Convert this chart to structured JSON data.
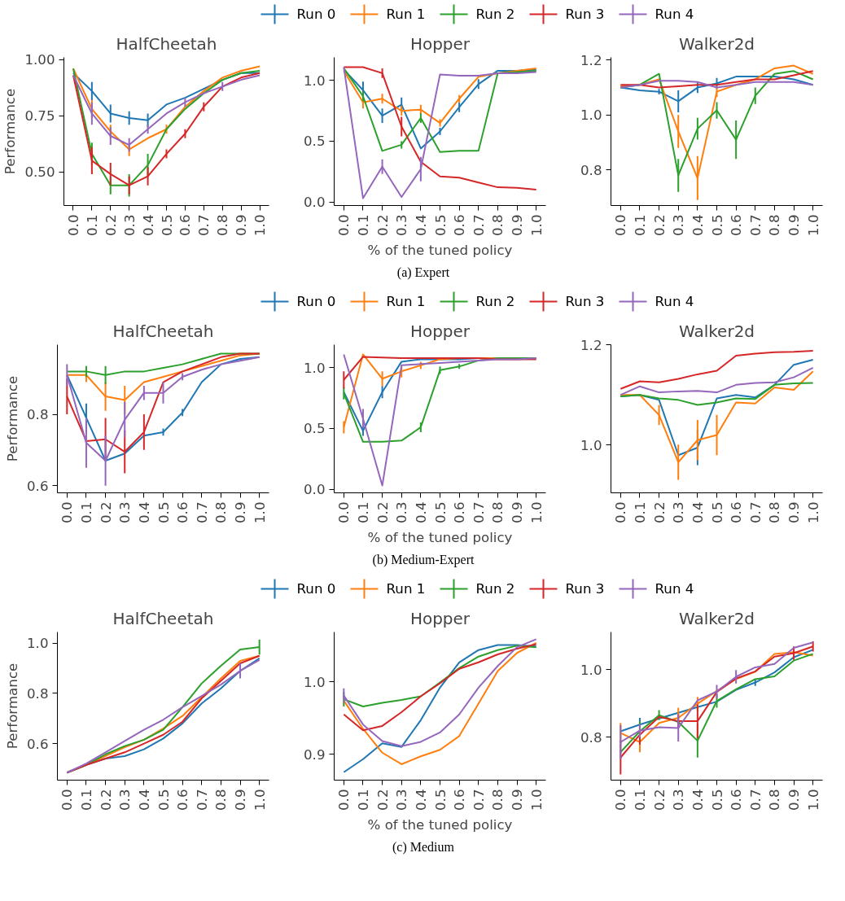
{
  "chart_data": [
    {
      "type": "line",
      "title": "HalfCheetah",
      "ylabel": "Performance",
      "categories": [
        "0.0",
        "0.1",
        "0.2",
        "0.3",
        "0.4",
        "0.5",
        "0.6",
        "0.7",
        "0.8",
        "0.9",
        "1.0"
      ],
      "ylim": [
        0.35,
        1.01
      ],
      "yticks": [
        {
          "value": 0.5,
          "label": "0.50"
        },
        {
          "value": 0.75,
          "label": "0.75"
        },
        {
          "value": 1.0,
          "label": "1.00"
        }
      ],
      "series": [
        {
          "color": "#1f77b4",
          "values": [
            0.94,
            0.86,
            0.76,
            0.74,
            0.73,
            0.8,
            0.83,
            0.87,
            0.91,
            0.94,
            0.94
          ],
          "errors": [
            null,
            0.04,
            0.04,
            0.03,
            0.03,
            null,
            null,
            null,
            null,
            null,
            null
          ]
        },
        {
          "color": "#ff7f0e",
          "values": [
            0.96,
            0.78,
            0.68,
            0.6,
            0.65,
            0.69,
            0.79,
            0.86,
            0.92,
            0.95,
            0.97
          ],
          "errors": [
            null,
            0.04,
            0.03,
            0.03,
            null,
            0.02,
            null,
            null,
            null,
            null,
            null
          ]
        },
        {
          "color": "#2ca02c",
          "values": [
            0.96,
            0.58,
            0.44,
            0.44,
            0.53,
            0.69,
            0.78,
            0.85,
            0.91,
            0.94,
            0.95
          ],
          "errors": [
            null,
            0.05,
            0.04,
            0.05,
            0.05,
            null,
            null,
            null,
            null,
            null,
            null
          ]
        },
        {
          "color": "#d62728",
          "values": [
            0.93,
            0.55,
            0.49,
            0.44,
            0.48,
            0.58,
            0.67,
            0.79,
            0.88,
            0.92,
            0.94
          ],
          "errors": [
            null,
            0.06,
            0.05,
            0.04,
            0.04,
            0.02,
            0.02,
            0.02,
            null,
            null,
            null
          ]
        },
        {
          "color": "#9467bd",
          "values": [
            0.93,
            0.76,
            0.66,
            0.62,
            0.69,
            0.76,
            0.81,
            0.85,
            0.88,
            0.91,
            0.93
          ],
          "errors": [
            null,
            0.05,
            0.04,
            0.03,
            0.02,
            null,
            0.02,
            null,
            0.02,
            null,
            null
          ]
        }
      ]
    },
    {
      "type": "line",
      "title": "Hopper",
      "xlabel": "% of the tuned policy",
      "legend": "top",
      "annotations": [
        "(a) Expert"
      ],
      "categories": [
        "0.0",
        "0.1",
        "0.2",
        "0.3",
        "0.4",
        "0.5",
        "0.6",
        "0.7",
        "0.8",
        "0.9",
        "1.0"
      ],
      "ylim": [
        -0.03,
        1.19
      ],
      "yticks": [
        {
          "value": 0,
          "label": "0.0"
        },
        {
          "value": 0.5,
          "label": "0.5"
        },
        {
          "value": 1,
          "label": "1.0"
        }
      ],
      "series": [
        {
          "name": "Run 0",
          "color": "#1f77b4",
          "values": [
            1.09,
            0.92,
            0.71,
            0.8,
            0.44,
            0.58,
            0.78,
            0.97,
            1.08,
            1.08,
            1.09
          ],
          "errors": [
            null,
            0.07,
            0.06,
            0.06,
            null,
            0.03,
            0.04,
            0.04,
            null,
            null,
            null
          ]
        },
        {
          "name": "Run 1",
          "color": "#ff7f0e",
          "values": [
            1.08,
            0.82,
            0.85,
            0.75,
            0.76,
            0.65,
            0.85,
            1.03,
            1.06,
            1.08,
            1.1
          ],
          "errors": [
            null,
            0.05,
            0.04,
            0.04,
            0.04,
            0.03,
            0.03,
            null,
            null,
            null,
            null
          ]
        },
        {
          "name": "Run 2",
          "color": "#2ca02c",
          "values": [
            1.1,
            0.87,
            0.42,
            0.47,
            0.69,
            0.41,
            0.42,
            0.42,
            1.06,
            1.07,
            1.08
          ],
          "errors": [
            null,
            0.04,
            null,
            0.03,
            0.04,
            null,
            null,
            null,
            null,
            null,
            null
          ]
        },
        {
          "name": "Run 3",
          "color": "#d62728",
          "values": [
            1.11,
            1.11,
            1.06,
            0.62,
            0.33,
            0.21,
            0.2,
            0.16,
            0.12,
            0.115,
            0.1
          ],
          "errors": [
            null,
            null,
            0.04,
            0.08,
            null,
            null,
            null,
            null,
            null,
            null,
            null
          ]
        },
        {
          "name": "Run 4",
          "color": "#9467bd",
          "values": [
            1.11,
            0.03,
            0.29,
            0.04,
            0.27,
            1.05,
            1.04,
            1.04,
            1.06,
            1.06,
            1.07
          ],
          "errors": [
            null,
            null,
            0.06,
            null,
            0.1,
            null,
            null,
            null,
            null,
            null,
            null
          ]
        }
      ]
    },
    {
      "type": "line",
      "title": "Walker2d",
      "categories": [
        "0.0",
        "0.1",
        "0.2",
        "0.3",
        "0.4",
        "0.5",
        "0.6",
        "0.7",
        "0.8",
        "0.9",
        "1.0"
      ],
      "ylim": [
        0.67,
        1.21
      ],
      "yticks": [
        {
          "value": 0.8,
          "label": "0.8"
        },
        {
          "value": 1.0,
          "label": "1.0"
        },
        {
          "value": 1.2,
          "label": "1.2"
        }
      ],
      "series": [
        {
          "color": "#1f77b4",
          "values": [
            1.1,
            1.09,
            1.085,
            1.05,
            1.1,
            1.115,
            1.14,
            1.14,
            1.14,
            1.13,
            1.11
          ],
          "errors": [
            null,
            null,
            0.01,
            0.04,
            0.02,
            0.02,
            null,
            null,
            null,
            null,
            null
          ]
        },
        {
          "color": "#ff7f0e",
          "values": [
            1.105,
            1.11,
            1.13,
            0.94,
            0.77,
            1.085,
            1.11,
            1.13,
            1.17,
            1.18,
            1.15
          ],
          "errors": [
            null,
            null,
            null,
            0.06,
            0.08,
            0.02,
            null,
            null,
            null,
            null,
            null
          ]
        },
        {
          "color": "#2ca02c",
          "values": [
            1.1,
            1.11,
            1.15,
            0.78,
            0.95,
            1.017,
            0.91,
            1.07,
            1.15,
            1.16,
            1.13
          ],
          "errors": [
            null,
            null,
            null,
            0.06,
            0.04,
            0.03,
            0.07,
            0.03,
            null,
            null,
            null
          ]
        },
        {
          "color": "#d62728",
          "values": [
            1.11,
            1.11,
            1.1,
            1.105,
            1.11,
            1.11,
            1.12,
            1.13,
            1.13,
            1.145,
            1.16
          ]
        },
        {
          "color": "#9467bd",
          "values": [
            1.1,
            1.11,
            1.125,
            1.125,
            1.12,
            1.1,
            1.11,
            1.12,
            1.12,
            1.12,
            1.11
          ]
        }
      ]
    },
    {
      "type": "line",
      "title": "HalfCheetah",
      "ylabel": "Performance",
      "categories": [
        "0.0",
        "0.1",
        "0.2",
        "0.3",
        "0.4",
        "0.5",
        "0.6",
        "0.7",
        "0.8",
        "0.9",
        "1.0"
      ],
      "ylim": [
        0.58,
        0.995
      ],
      "yticks": [
        {
          "value": 0.6,
          "label": "0.6"
        },
        {
          "value": 0.8,
          "label": "0.8"
        }
      ],
      "series": [
        {
          "color": "#1f77b4",
          "values": [
            0.91,
            0.79,
            0.67,
            0.69,
            0.74,
            0.75,
            0.805,
            0.89,
            0.94,
            0.955,
            0.96
          ],
          "errors": [
            null,
            0.04,
            null,
            null,
            null,
            0.01,
            0.01,
            null,
            null,
            null,
            null
          ]
        },
        {
          "color": "#ff7f0e",
          "values": [
            0.91,
            0.91,
            0.85,
            0.84,
            0.89,
            0.905,
            0.92,
            0.935,
            0.95,
            0.965,
            0.97
          ],
          "errors": [
            null,
            0.02,
            0.04,
            0.04,
            null,
            null,
            null,
            null,
            null,
            null,
            null
          ]
        },
        {
          "color": "#2ca02c",
          "values": [
            0.92,
            0.92,
            0.91,
            0.92,
            0.92,
            0.93,
            0.94,
            0.955,
            0.97,
            0.97,
            0.97
          ],
          "errors": [
            null,
            0.015,
            0.025,
            null,
            null,
            null,
            null,
            null,
            null,
            null,
            null
          ]
        },
        {
          "color": "#d62728",
          "values": [
            0.85,
            0.725,
            0.73,
            0.695,
            0.75,
            0.89,
            0.92,
            0.94,
            0.96,
            0.97,
            0.97
          ],
          "errors": [
            0.05,
            null,
            0.06,
            0.06,
            0.05,
            null,
            null,
            null,
            null,
            null,
            null
          ]
        },
        {
          "color": "#9467bd",
          "values": [
            0.91,
            0.72,
            0.67,
            0.785,
            0.86,
            0.86,
            0.905,
            0.925,
            0.94,
            0.95,
            0.96
          ],
          "errors": [
            0.03,
            0.07,
            0.07,
            0.05,
            0.02,
            0.03,
            0.01,
            null,
            null,
            null,
            null
          ]
        }
      ]
    },
    {
      "type": "line",
      "title": "Hopper",
      "xlabel": "% of the tuned policy",
      "legend": "top",
      "annotations": [
        "(b) Medium-Expert"
      ],
      "categories": [
        "0.0",
        "0.1",
        "0.2",
        "0.3",
        "0.4",
        "0.5",
        "0.6",
        "0.7",
        "0.8",
        "0.9",
        "1.0"
      ],
      "ylim": [
        -0.03,
        1.19
      ],
      "yticks": [
        {
          "value": 0,
          "label": "0.0"
        },
        {
          "value": 0.5,
          "label": "0.5"
        },
        {
          "value": 1,
          "label": "1.0"
        }
      ],
      "series": [
        {
          "name": "Run 0",
          "color": "#1f77b4",
          "values": [
            0.8,
            0.48,
            0.8,
            1.05,
            1.07,
            1.07,
            1.07,
            1.08,
            1.08,
            null,
            null
          ],
          "errors": [
            null,
            0.04,
            0.05,
            null,
            null,
            null,
            null,
            null,
            null,
            null,
            null
          ]
        },
        {
          "name": "Run 1",
          "color": "#ff7f0e",
          "values": [
            0.51,
            1.11,
            0.91,
            0.97,
            1.02,
            1.07,
            1.08,
            1.08,
            1.08,
            1.08,
            1.08
          ],
          "errors": [
            0.05,
            null,
            0.06,
            0.05,
            0.03,
            null,
            null,
            null,
            null,
            null,
            null
          ]
        },
        {
          "name": "Run 2",
          "color": "#2ca02c",
          "values": [
            0.79,
            0.39,
            0.39,
            0.4,
            0.51,
            0.98,
            1.01,
            1.06,
            1.08,
            1.08,
            1.08
          ],
          "errors": [
            0.05,
            null,
            null,
            null,
            0.04,
            0.03,
            0.02,
            null,
            null,
            null,
            null
          ]
        },
        {
          "name": "Run 3",
          "color": "#d62728",
          "values": [
            0.9,
            1.09,
            1.085,
            1.08,
            1.08,
            1.08,
            1.08,
            1.08,
            1.07,
            1.07,
            1.07
          ],
          "errors": [
            0.07,
            null,
            null,
            null,
            null,
            null,
            null,
            null,
            null,
            null,
            null
          ]
        },
        {
          "name": "Run 4",
          "color": "#9467bd",
          "values": [
            1.11,
            0.58,
            0.03,
            1.02,
            1.03,
            1.04,
            1.05,
            1.06,
            1.07,
            1.07,
            1.08
          ],
          "errors": [
            null,
            0.08,
            null,
            null,
            null,
            null,
            null,
            null,
            null,
            null,
            null
          ]
        }
      ]
    },
    {
      "type": "line",
      "title": "Walker2d",
      "categories": [
        "0.0",
        "0.1",
        "0.2",
        "0.3",
        "0.4",
        "0.5",
        "0.6",
        "0.7",
        "0.8",
        "0.9",
        "1.0"
      ],
      "ylim": [
        0.905,
        1.2
      ],
      "yticks": [
        {
          "value": 1.0,
          "label": "1.0"
        },
        {
          "value": 1.2,
          "label": "1.2"
        }
      ],
      "series": [
        {
          "color": "#1f77b4",
          "values": [
            1.097,
            1.1,
            1.09,
            0.98,
            0.995,
            1.093,
            1.1,
            1.095,
            1.12,
            1.16,
            1.17
          ],
          "errors": [
            null,
            null,
            null,
            null,
            0.035,
            null,
            null,
            null,
            null,
            null,
            null
          ]
        },
        {
          "color": "#ff7f0e",
          "values": [
            1.1,
            1.1,
            1.06,
            0.966,
            1.01,
            1.02,
            1.085,
            1.083,
            1.115,
            1.11,
            1.147
          ],
          "errors": [
            null,
            null,
            0.02,
            0.035,
            0.04,
            0.04,
            null,
            null,
            null,
            null,
            null
          ]
        },
        {
          "color": "#2ca02c",
          "values": [
            1.097,
            1.1,
            1.093,
            1.09,
            1.08,
            1.085,
            1.093,
            1.092,
            1.12,
            1.123,
            1.124
          ]
        },
        {
          "color": "#d62728",
          "values": [
            1.112,
            1.127,
            1.125,
            1.132,
            1.141,
            1.148,
            1.178,
            1.182,
            1.185,
            1.186,
            1.188
          ]
        },
        {
          "color": "#9467bd",
          "values": [
            1.1,
            1.117,
            1.105,
            1.107,
            1.108,
            1.105,
            1.12,
            1.124,
            1.125,
            1.135,
            1.154
          ]
        }
      ]
    },
    {
      "type": "line",
      "title": "HalfCheetah",
      "ylabel": "Performance",
      "categories": [
        "0.0",
        "0.1",
        "0.2",
        "0.3",
        "0.4",
        "0.5",
        "0.6",
        "0.7",
        "0.8",
        "0.9",
        "1.0"
      ],
      "ylim": [
        0.454,
        1.045
      ],
      "yticks": [
        {
          "value": 0.6,
          "label": "0.6"
        },
        {
          "value": 0.8,
          "label": "0.8"
        },
        {
          "value": 1.0,
          "label": "1.0"
        }
      ],
      "series": [
        {
          "color": "#1f77b4",
          "values": [
            0.484,
            0.515,
            0.54,
            0.55,
            0.577,
            0.62,
            0.68,
            0.76,
            0.82,
            0.89,
            0.94
          ]
        },
        {
          "color": "#ff7f0e",
          "values": [
            0.484,
            0.515,
            0.55,
            0.585,
            0.615,
            0.66,
            0.71,
            0.785,
            0.86,
            0.93,
            0.95
          ]
        },
        {
          "color": "#2ca02c",
          "values": [
            0.484,
            0.515,
            0.557,
            0.59,
            0.615,
            0.655,
            0.745,
            0.84,
            0.91,
            0.975,
            0.985
          ],
          "errors": [
            null,
            null,
            null,
            null,
            null,
            null,
            null,
            null,
            null,
            null,
            0.03
          ]
        },
        {
          "color": "#d62728",
          "values": [
            0.484,
            0.515,
            0.54,
            0.565,
            0.6,
            0.635,
            0.687,
            0.78,
            0.85,
            0.92,
            0.95
          ]
        },
        {
          "color": "#9467bd",
          "values": [
            0.484,
            0.52,
            0.565,
            0.61,
            0.655,
            0.695,
            0.745,
            0.79,
            0.835,
            0.89,
            0.933
          ],
          "errors": [
            null,
            null,
            null,
            null,
            null,
            null,
            null,
            null,
            null,
            0.03,
            null
          ]
        }
      ]
    },
    {
      "type": "line",
      "title": "Hopper",
      "xlabel": "% of the tuned policy",
      "legend": "top",
      "annotations": [
        "(c) Medium"
      ],
      "categories": [
        "0.0",
        "0.1",
        "0.2",
        "0.3",
        "0.4",
        "0.5",
        "0.6",
        "0.7",
        "0.8",
        "0.9",
        "1.0"
      ],
      "ylim": [
        0.864,
        1.069
      ],
      "yticks": [
        {
          "value": 0.9,
          "label": "0.9"
        },
        {
          "value": 1.0,
          "label": "1.0"
        }
      ],
      "series": [
        {
          "name": "Run 0",
          "color": "#1f77b4",
          "values": [
            0.875,
            0.893,
            0.915,
            0.91,
            0.947,
            0.992,
            1.027,
            1.044,
            1.051,
            1.051,
            1.049
          ]
        },
        {
          "name": "Run 1",
          "color": "#ff7f0e",
          "values": [
            0.974,
            0.935,
            0.902,
            0.886,
            0.897,
            0.906,
            0.925,
            0.97,
            1.015,
            1.04,
            1.054
          ]
        },
        {
          "name": "Run 2",
          "color": "#2ca02c",
          "values": [
            0.976,
            0.966,
            0.971,
            0.975,
            0.98,
            0.999,
            1.019,
            1.035,
            1.044,
            1.05,
            1.048
          ],
          "errors": [
            0.01,
            null,
            null,
            null,
            null,
            null,
            null,
            null,
            null,
            null,
            null
          ]
        },
        {
          "name": "Run 3",
          "color": "#d62728",
          "values": [
            0.955,
            0.933,
            0.939,
            0.958,
            0.98,
            0.998,
            1.018,
            1.027,
            1.038,
            1.046,
            1.052
          ]
        },
        {
          "name": "Run 4",
          "color": "#9467bd",
          "values": [
            0.981,
            0.941,
            0.918,
            0.911,
            0.917,
            0.93,
            0.955,
            0.992,
            1.022,
            1.048,
            1.059
          ],
          "errors": [
            0.01,
            null,
            null,
            null,
            null,
            null,
            null,
            null,
            null,
            null,
            null
          ]
        }
      ]
    },
    {
      "type": "line",
      "title": "Walker2d",
      "categories": [
        "0.0",
        "0.1",
        "0.2",
        "0.3",
        "0.4",
        "0.5",
        "0.6",
        "0.7",
        "0.8",
        "0.9",
        "1.0"
      ],
      "ylim": [
        0.672,
        1.112
      ],
      "yticks": [
        {
          "value": 0.8,
          "label": "0.8"
        },
        {
          "value": 1.0,
          "label": "1.0"
        }
      ],
      "series": [
        {
          "color": "#1f77b4",
          "values": [
            0.817,
            0.837,
            0.855,
            0.872,
            0.889,
            0.905,
            0.94,
            0.962,
            0.992,
            1.037,
            1.059
          ],
          "errors": [
            null,
            0.02,
            null,
            null,
            null,
            null,
            null,
            0.01,
            null,
            null,
            null
          ]
        },
        {
          "color": "#ff7f0e",
          "values": [
            0.812,
            0.785,
            0.842,
            0.857,
            0.899,
            0.937,
            0.972,
            0.994,
            1.047,
            1.052,
            1.042
          ],
          "errors": [
            0.03,
            0.03,
            null,
            0.03,
            0.02,
            null,
            null,
            null,
            null,
            null,
            null
          ]
        },
        {
          "color": "#2ca02c",
          "values": [
            0.755,
            0.817,
            0.865,
            0.845,
            0.789,
            0.907,
            0.942,
            0.972,
            0.98,
            1.027,
            1.047
          ],
          "errors": [
            null,
            0.03,
            0.015,
            null,
            0.05,
            0.02,
            null,
            null,
            null,
            null,
            null
          ]
        },
        {
          "color": "#d62728",
          "values": [
            0.739,
            0.807,
            0.86,
            0.847,
            0.847,
            0.934,
            0.974,
            0.995,
            1.039,
            1.049,
            1.069
          ],
          "errors": [
            0.05,
            0.03,
            null,
            0.02,
            0.05,
            null,
            null,
            null,
            null,
            0.02,
            0.015
          ]
        },
        {
          "color": "#9467bd",
          "values": [
            0.785,
            0.819,
            0.829,
            0.827,
            0.909,
            0.935,
            0.979,
            1.007,
            1.017,
            1.065,
            1.081
          ],
          "errors": [
            0.05,
            0.02,
            null,
            0.04,
            null,
            0.02,
            0.02,
            null,
            null,
            null,
            null
          ]
        }
      ]
    }
  ]
}
